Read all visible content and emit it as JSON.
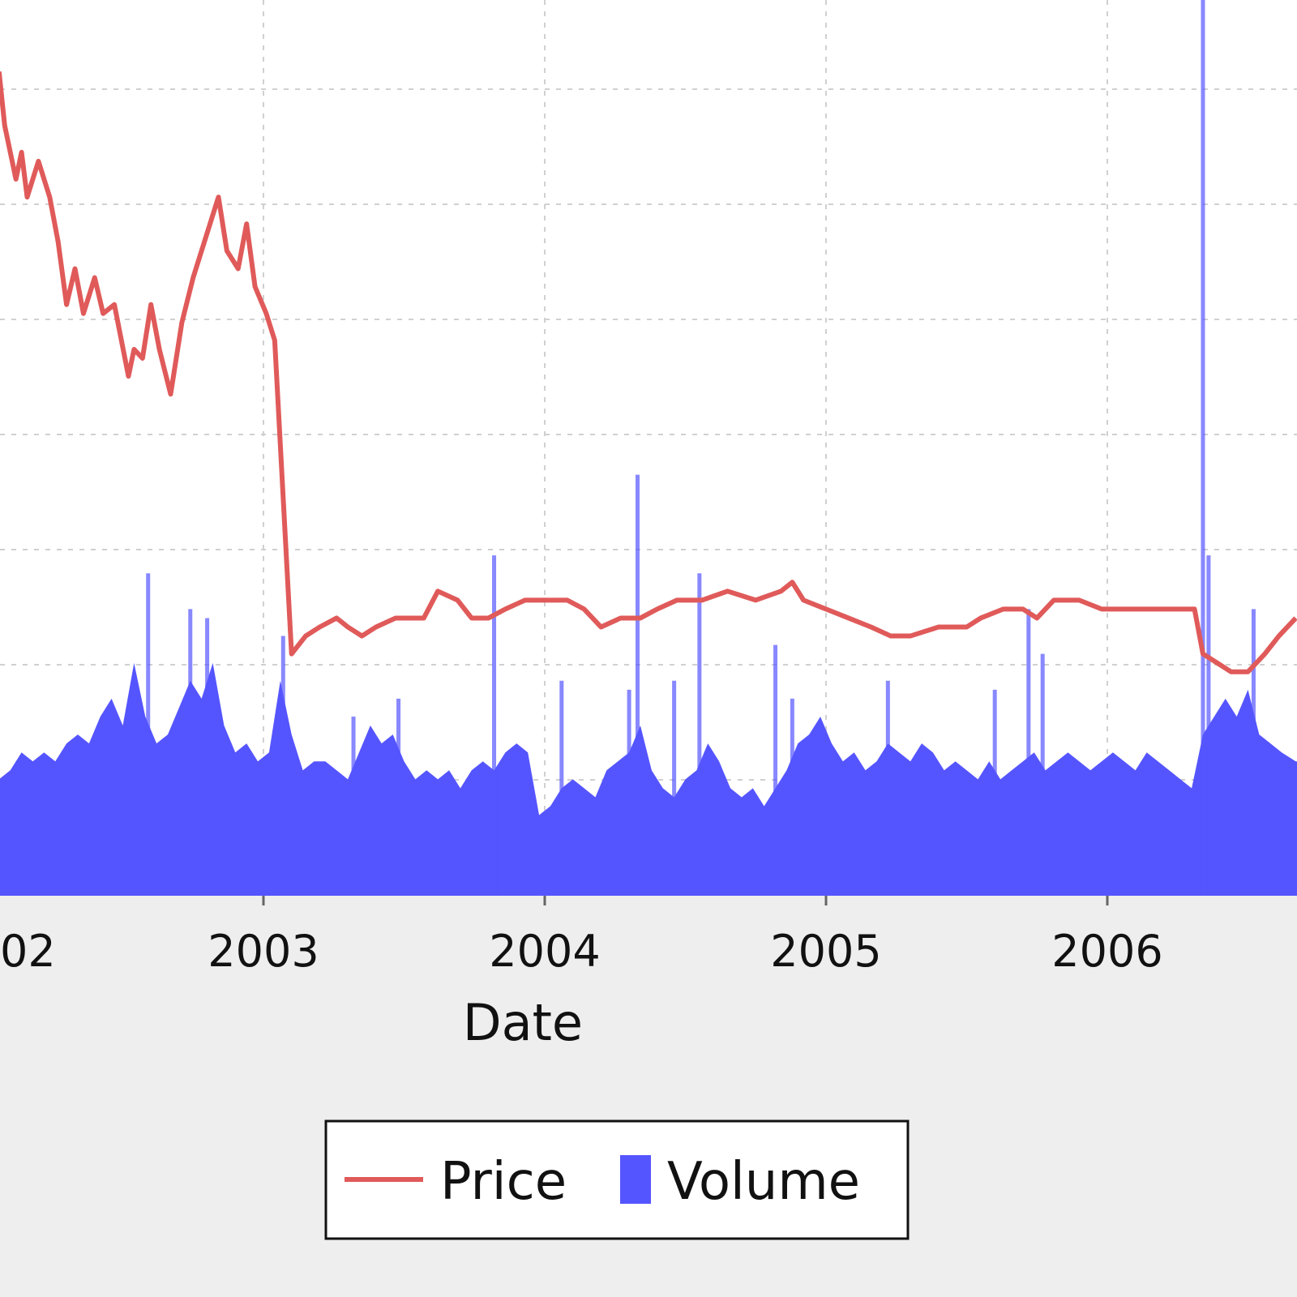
{
  "chart_data": {
    "type": "line+bar",
    "xlabel": "Date",
    "x_ticks": [
      "2002",
      "2003",
      "2004",
      "2005",
      "2006"
    ],
    "x_tick_labels": [
      "02",
      "2003",
      "2004",
      "2005",
      "2006"
    ],
    "x_range": [
      2002.06,
      2006.67
    ],
    "grid": true,
    "legend_position": "bottom-center",
    "legend": [
      {
        "name": "Price",
        "color": "#e05a5a",
        "kind": "line"
      },
      {
        "name": "Volume",
        "color": "#5555ff",
        "kind": "bar"
      }
    ],
    "series": [
      {
        "name": "Price",
        "note": "relative level, 0 = bottom of plot, 1 = top",
        "points": [
          [
            2002.06,
            0.92
          ],
          [
            2002.08,
            0.86
          ],
          [
            2002.12,
            0.8
          ],
          [
            2002.14,
            0.83
          ],
          [
            2002.16,
            0.78
          ],
          [
            2002.2,
            0.82
          ],
          [
            2002.24,
            0.78
          ],
          [
            2002.27,
            0.73
          ],
          [
            2002.3,
            0.66
          ],
          [
            2002.33,
            0.7
          ],
          [
            2002.36,
            0.65
          ],
          [
            2002.4,
            0.69
          ],
          [
            2002.43,
            0.65
          ],
          [
            2002.47,
            0.66
          ],
          [
            2002.52,
            0.58
          ],
          [
            2002.54,
            0.61
          ],
          [
            2002.57,
            0.6
          ],
          [
            2002.6,
            0.66
          ],
          [
            2002.63,
            0.61
          ],
          [
            2002.67,
            0.56
          ],
          [
            2002.71,
            0.64
          ],
          [
            2002.75,
            0.69
          ],
          [
            2002.8,
            0.74
          ],
          [
            2002.84,
            0.78
          ],
          [
            2002.87,
            0.72
          ],
          [
            2002.91,
            0.7
          ],
          [
            2002.94,
            0.75
          ],
          [
            2002.97,
            0.68
          ],
          [
            2003.01,
            0.65
          ],
          [
            2003.04,
            0.62
          ],
          [
            2003.1,
            0.27
          ],
          [
            2003.15,
            0.29
          ],
          [
            2003.2,
            0.3
          ],
          [
            2003.26,
            0.31
          ],
          [
            2003.3,
            0.3
          ],
          [
            2003.35,
            0.29
          ],
          [
            2003.4,
            0.3
          ],
          [
            2003.47,
            0.31
          ],
          [
            2003.52,
            0.31
          ],
          [
            2003.57,
            0.31
          ],
          [
            2003.62,
            0.34
          ],
          [
            2003.69,
            0.33
          ],
          [
            2003.74,
            0.31
          ],
          [
            2003.8,
            0.31
          ],
          [
            2003.86,
            0.32
          ],
          [
            2003.93,
            0.33
          ],
          [
            2004.0,
            0.33
          ],
          [
            2004.08,
            0.33
          ],
          [
            2004.14,
            0.32
          ],
          [
            2004.2,
            0.3
          ],
          [
            2004.27,
            0.31
          ],
          [
            2004.34,
            0.31
          ],
          [
            2004.4,
            0.32
          ],
          [
            2004.47,
            0.33
          ],
          [
            2004.56,
            0.33
          ],
          [
            2004.65,
            0.34
          ],
          [
            2004.75,
            0.33
          ],
          [
            2004.84,
            0.34
          ],
          [
            2004.88,
            0.35
          ],
          [
            2004.92,
            0.33
          ],
          [
            2005.0,
            0.32
          ],
          [
            2005.08,
            0.31
          ],
          [
            2005.16,
            0.3
          ],
          [
            2005.23,
            0.29
          ],
          [
            2005.3,
            0.29
          ],
          [
            2005.4,
            0.3
          ],
          [
            2005.5,
            0.3
          ],
          [
            2005.55,
            0.31
          ],
          [
            2005.63,
            0.32
          ],
          [
            2005.7,
            0.32
          ],
          [
            2005.75,
            0.31
          ],
          [
            2005.81,
            0.33
          ],
          [
            2005.9,
            0.33
          ],
          [
            2005.98,
            0.32
          ],
          [
            2006.06,
            0.32
          ],
          [
            2006.13,
            0.32
          ],
          [
            2006.2,
            0.32
          ],
          [
            2006.25,
            0.32
          ],
          [
            2006.31,
            0.32
          ],
          [
            2006.34,
            0.27
          ],
          [
            2006.39,
            0.26
          ],
          [
            2006.44,
            0.25
          ],
          [
            2006.5,
            0.25
          ],
          [
            2006.56,
            0.27
          ],
          [
            2006.61,
            0.29
          ],
          [
            2006.67,
            0.31
          ]
        ]
      },
      {
        "name": "Volume",
        "note": "relative level, 0 = bottom of plot, 1 = top",
        "points": [
          [
            2002.06,
            0.13
          ],
          [
            2002.1,
            0.14
          ],
          [
            2002.14,
            0.16
          ],
          [
            2002.18,
            0.15
          ],
          [
            2002.22,
            0.16
          ],
          [
            2002.26,
            0.15
          ],
          [
            2002.3,
            0.17
          ],
          [
            2002.34,
            0.18
          ],
          [
            2002.38,
            0.17
          ],
          [
            2002.42,
            0.2
          ],
          [
            2002.46,
            0.22
          ],
          [
            2002.5,
            0.19
          ],
          [
            2002.54,
            0.26
          ],
          [
            2002.58,
            0.2
          ],
          [
            2002.62,
            0.17
          ],
          [
            2002.66,
            0.18
          ],
          [
            2002.7,
            0.21
          ],
          [
            2002.74,
            0.24
          ],
          [
            2002.78,
            0.22
          ],
          [
            2002.82,
            0.26
          ],
          [
            2002.86,
            0.19
          ],
          [
            2002.9,
            0.16
          ],
          [
            2002.94,
            0.17
          ],
          [
            2002.98,
            0.15
          ],
          [
            2003.02,
            0.16
          ],
          [
            2003.06,
            0.24
          ],
          [
            2003.1,
            0.18
          ],
          [
            2003.14,
            0.14
          ],
          [
            2003.18,
            0.15
          ],
          [
            2003.22,
            0.15
          ],
          [
            2003.26,
            0.14
          ],
          [
            2003.3,
            0.13
          ],
          [
            2003.34,
            0.16
          ],
          [
            2003.38,
            0.19
          ],
          [
            2003.42,
            0.17
          ],
          [
            2003.46,
            0.18
          ],
          [
            2003.5,
            0.15
          ],
          [
            2003.54,
            0.13
          ],
          [
            2003.58,
            0.14
          ],
          [
            2003.62,
            0.13
          ],
          [
            2003.66,
            0.14
          ],
          [
            2003.7,
            0.12
          ],
          [
            2003.74,
            0.14
          ],
          [
            2003.78,
            0.15
          ],
          [
            2003.82,
            0.14
          ],
          [
            2003.86,
            0.16
          ],
          [
            2003.9,
            0.17
          ],
          [
            2003.94,
            0.16
          ],
          [
            2003.98,
            0.09
          ],
          [
            2004.02,
            0.1
          ],
          [
            2004.06,
            0.12
          ],
          [
            2004.1,
            0.13
          ],
          [
            2004.14,
            0.12
          ],
          [
            2004.18,
            0.11
          ],
          [
            2004.22,
            0.14
          ],
          [
            2004.26,
            0.15
          ],
          [
            2004.3,
            0.16
          ],
          [
            2004.34,
            0.19
          ],
          [
            2004.38,
            0.14
          ],
          [
            2004.42,
            0.12
          ],
          [
            2004.46,
            0.11
          ],
          [
            2004.5,
            0.13
          ],
          [
            2004.54,
            0.14
          ],
          [
            2004.58,
            0.17
          ],
          [
            2004.62,
            0.15
          ],
          [
            2004.66,
            0.12
          ],
          [
            2004.7,
            0.11
          ],
          [
            2004.74,
            0.12
          ],
          [
            2004.78,
            0.1
          ],
          [
            2004.82,
            0.12
          ],
          [
            2004.86,
            0.14
          ],
          [
            2004.9,
            0.17
          ],
          [
            2004.94,
            0.18
          ],
          [
            2004.98,
            0.2
          ],
          [
            2005.02,
            0.17
          ],
          [
            2005.06,
            0.15
          ],
          [
            2005.1,
            0.16
          ],
          [
            2005.14,
            0.14
          ],
          [
            2005.18,
            0.15
          ],
          [
            2005.22,
            0.17
          ],
          [
            2005.26,
            0.16
          ],
          [
            2005.3,
            0.15
          ],
          [
            2005.34,
            0.17
          ],
          [
            2005.38,
            0.16
          ],
          [
            2005.42,
            0.14
          ],
          [
            2005.46,
            0.15
          ],
          [
            2005.5,
            0.14
          ],
          [
            2005.54,
            0.13
          ],
          [
            2005.58,
            0.15
          ],
          [
            2005.62,
            0.13
          ],
          [
            2005.66,
            0.14
          ],
          [
            2005.7,
            0.15
          ],
          [
            2005.74,
            0.16
          ],
          [
            2005.78,
            0.14
          ],
          [
            2005.82,
            0.15
          ],
          [
            2005.86,
            0.16
          ],
          [
            2005.9,
            0.15
          ],
          [
            2005.94,
            0.14
          ],
          [
            2005.98,
            0.15
          ],
          [
            2006.02,
            0.16
          ],
          [
            2006.06,
            0.15
          ],
          [
            2006.1,
            0.14
          ],
          [
            2006.14,
            0.16
          ],
          [
            2006.18,
            0.15
          ],
          [
            2006.22,
            0.14
          ],
          [
            2006.26,
            0.13
          ],
          [
            2006.3,
            0.12
          ],
          [
            2006.34,
            0.18
          ],
          [
            2006.38,
            0.2
          ],
          [
            2006.42,
            0.22
          ],
          [
            2006.46,
            0.2
          ],
          [
            2006.5,
            0.23
          ],
          [
            2006.54,
            0.18
          ],
          [
            2006.58,
            0.17
          ],
          [
            2006.62,
            0.16
          ],
          [
            2006.67,
            0.15
          ]
        ],
        "spikes": [
          [
            2002.59,
            0.36
          ],
          [
            2002.74,
            0.32
          ],
          [
            2002.8,
            0.31
          ],
          [
            2003.07,
            0.29
          ],
          [
            2003.32,
            0.2
          ],
          [
            2003.48,
            0.22
          ],
          [
            2003.82,
            0.38
          ],
          [
            2004.06,
            0.24
          ],
          [
            2004.3,
            0.23
          ],
          [
            2004.33,
            0.47
          ],
          [
            2004.46,
            0.24
          ],
          [
            2004.55,
            0.36
          ],
          [
            2004.82,
            0.28
          ],
          [
            2004.88,
            0.22
          ],
          [
            2005.22,
            0.24
          ],
          [
            2005.6,
            0.23
          ],
          [
            2005.72,
            0.32
          ],
          [
            2005.77,
            0.27
          ],
          [
            2006.34,
            1.0
          ],
          [
            2006.36,
            0.38
          ],
          [
            2006.52,
            0.32
          ]
        ]
      }
    ]
  }
}
